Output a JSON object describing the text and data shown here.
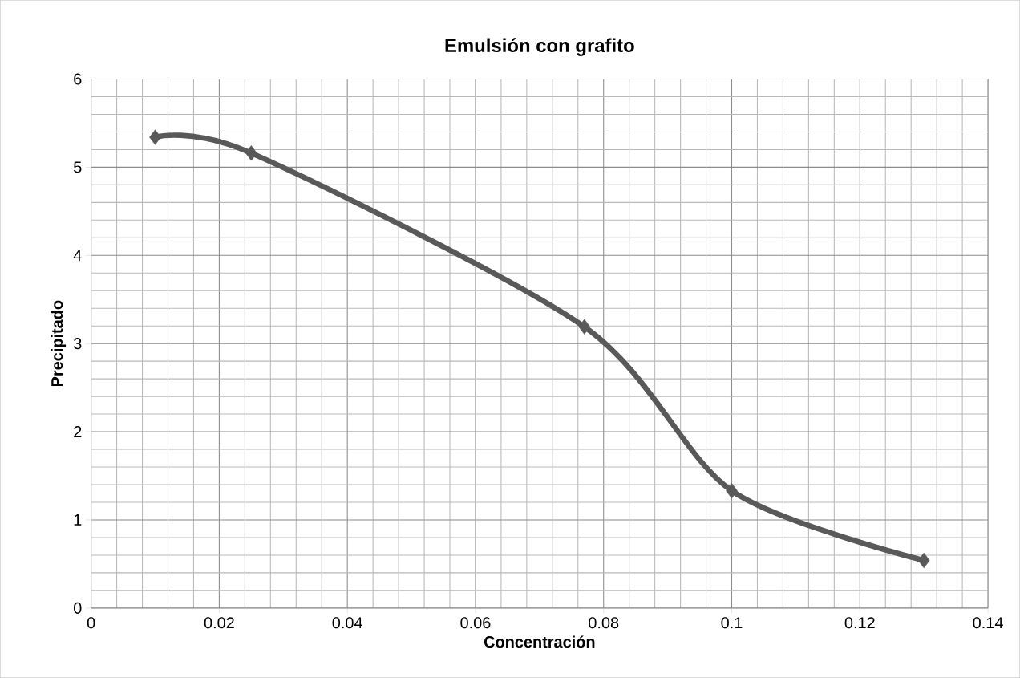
{
  "chart_data": {
    "type": "line",
    "title": "Emulsión con grafito",
    "xlabel": "Concentración",
    "ylabel": "Precipitado",
    "x": [
      0.01,
      0.025,
      0.077,
      0.1,
      0.13
    ],
    "series": [
      {
        "color": "#595959",
        "values": [
          5.34,
          5.16,
          3.19,
          1.33,
          0.54
        ]
      }
    ],
    "xlim": [
      0,
      0.14
    ],
    "ylim": [
      0,
      6
    ],
    "xticks": [
      0,
      0.02,
      0.04,
      0.06,
      0.08,
      0.1,
      0.12,
      0.14
    ],
    "yticks": [
      0,
      1,
      2,
      3,
      4,
      5,
      6
    ],
    "grid": true,
    "marker": "diamond",
    "line_style": "solid"
  }
}
